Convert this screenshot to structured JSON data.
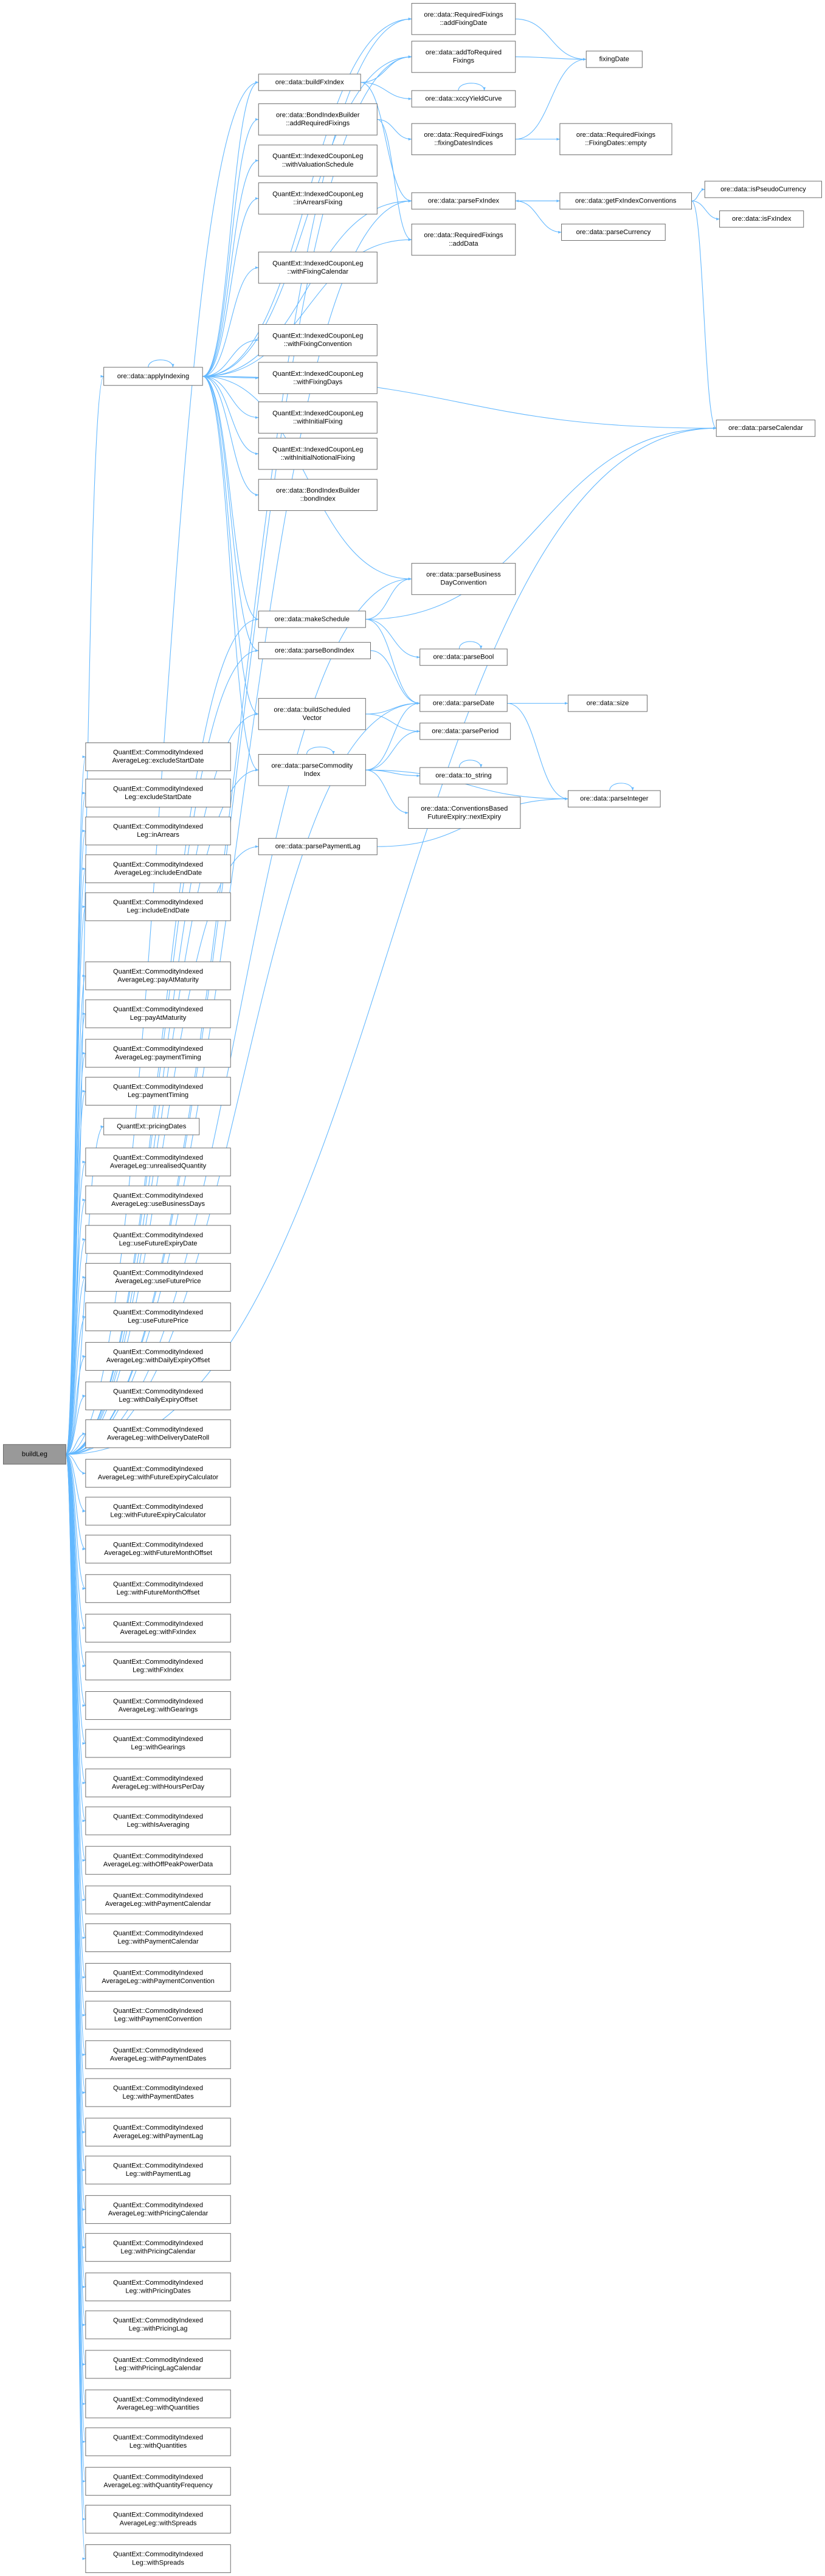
{
  "nodes": [
    {
      "lines": [
        "buildLeg"
      ]
    },
    {
      "lines": [
        "ore::data::applyIndexing"
      ]
    },
    {
      "lines": [
        "ore::data::buildFxIndex"
      ]
    },
    {
      "lines": [
        "ore::data::BondIndexBuilder",
        "::addRequiredFixings"
      ]
    },
    {
      "lines": [
        "QuantExt::IndexedCouponLeg",
        "::withValuationSchedule"
      ]
    },
    {
      "lines": [
        "QuantExt::IndexedCouponLeg",
        "::inArrearsFixing"
      ]
    },
    {
      "lines": [
        "QuantExt::IndexedCouponLeg",
        "::withFixingCalendar"
      ]
    },
    {
      "lines": [
        "QuantExt::IndexedCouponLeg",
        "::withFixingConvention"
      ]
    },
    {
      "lines": [
        "QuantExt::IndexedCouponLeg",
        "::withFixingDays"
      ]
    },
    {
      "lines": [
        "QuantExt::IndexedCouponLeg",
        "::withInitialFixing"
      ]
    },
    {
      "lines": [
        "QuantExt::IndexedCouponLeg",
        "::withInitialNotionalFixing"
      ]
    },
    {
      "lines": [
        "ore::data::BondIndexBuilder",
        "::bondIndex"
      ]
    },
    {
      "lines": [
        "ore::data::makeSchedule"
      ]
    },
    {
      "lines": [
        "ore::data::parseBondIndex"
      ]
    },
    {
      "lines": [
        "ore::data::buildScheduled",
        "Vector"
      ]
    },
    {
      "lines": [
        "ore::data::parseCommodity",
        "Index"
      ]
    },
    {
      "lines": [
        "ore::data::parsePaymentLag"
      ]
    },
    {
      "lines": [
        "ore::data::RequiredFixings",
        "::addFixingDate"
      ]
    },
    {
      "lines": [
        "ore::data::addToRequired",
        "Fixings"
      ]
    },
    {
      "lines": [
        "ore::data::xccyYieldCurve"
      ]
    },
    {
      "lines": [
        "ore::data::RequiredFixings",
        "::fixingDatesIndices"
      ]
    },
    {
      "lines": [
        "ore::data::parseFxIndex"
      ]
    },
    {
      "lines": [
        "ore::data::RequiredFixings",
        "::addData"
      ]
    },
    {
      "lines": [
        "ore::data::parseBusiness",
        "DayConvention"
      ]
    },
    {
      "lines": [
        "ore::data::parseBool"
      ]
    },
    {
      "lines": [
        "ore::data::parseDate"
      ]
    },
    {
      "lines": [
        "ore::data::parsePeriod"
      ]
    },
    {
      "lines": [
        "ore::data::to_string"
      ]
    },
    {
      "lines": [
        "ore::data::ConventionsBased",
        "FutureExpiry::nextExpiry"
      ]
    },
    {
      "lines": [
        "fixingDate"
      ]
    },
    {
      "lines": [
        "ore::data::RequiredFixings",
        "::FixingDates::empty"
      ]
    },
    {
      "lines": [
        "ore::data::getFxIndexConventions"
      ]
    },
    {
      "lines": [
        "ore::data::parseCurrency"
      ]
    },
    {
      "lines": [
        "ore::data::size"
      ]
    },
    {
      "lines": [
        "ore::data::parseInteger"
      ]
    },
    {
      "lines": [
        "ore::data::isPseudoCurrency"
      ]
    },
    {
      "lines": [
        "ore::data::isFxIndex"
      ]
    },
    {
      "lines": [
        "ore::data::parseCalendar"
      ]
    },
    {
      "lines": [
        "QuantExt::CommodityIndexed",
        "AverageLeg::excludeStartDate"
      ]
    },
    {
      "lines": [
        "QuantExt::CommodityIndexed",
        "Leg::excludeStartDate"
      ]
    },
    {
      "lines": [
        "QuantExt::CommodityIndexed",
        "Leg::inArrears"
      ]
    },
    {
      "lines": [
        "QuantExt::CommodityIndexed",
        "AverageLeg::includeEndDate"
      ]
    },
    {
      "lines": [
        "QuantExt::CommodityIndexed",
        "Leg::includeEndDate"
      ]
    },
    {
      "lines": [
        "QuantExt::CommodityIndexed",
        "AverageLeg::payAtMaturity"
      ]
    },
    {
      "lines": [
        "QuantExt::CommodityIndexed",
        "Leg::payAtMaturity"
      ]
    },
    {
      "lines": [
        "QuantExt::CommodityIndexed",
        "AverageLeg::paymentTiming"
      ]
    },
    {
      "lines": [
        "QuantExt::CommodityIndexed",
        "Leg::paymentTiming"
      ]
    },
    {
      "lines": [
        "QuantExt::pricingDates"
      ]
    },
    {
      "lines": [
        "QuantExt::CommodityIndexed",
        "AverageLeg::unrealisedQuantity"
      ]
    },
    {
      "lines": [
        "QuantExt::CommodityIndexed",
        "AverageLeg::useBusinessDays"
      ]
    },
    {
      "lines": [
        "QuantExt::CommodityIndexed",
        "Leg::useFutureExpiryDate"
      ]
    },
    {
      "lines": [
        "QuantExt::CommodityIndexed",
        "AverageLeg::useFuturePrice"
      ]
    },
    {
      "lines": [
        "QuantExt::CommodityIndexed",
        "Leg::useFuturePrice"
      ]
    },
    {
      "lines": [
        "QuantExt::CommodityIndexed",
        "AverageLeg::withDailyExpiryOffset"
      ]
    },
    {
      "lines": [
        "QuantExt::CommodityIndexed",
        "Leg::withDailyExpiryOffset"
      ]
    },
    {
      "lines": [
        "QuantExt::CommodityIndexed",
        "AverageLeg::withDeliveryDateRoll"
      ]
    },
    {
      "lines": [
        "QuantExt::CommodityIndexed",
        "AverageLeg::withFutureExpiryCalculator"
      ]
    },
    {
      "lines": [
        "QuantExt::CommodityIndexed",
        "Leg::withFutureExpiryCalculator"
      ]
    },
    {
      "lines": [
        "QuantExt::CommodityIndexed",
        "AverageLeg::withFutureMonthOffset"
      ]
    },
    {
      "lines": [
        "QuantExt::CommodityIndexed",
        "Leg::withFutureMonthOffset"
      ]
    },
    {
      "lines": [
        "QuantExt::CommodityIndexed",
        "AverageLeg::withFxIndex"
      ]
    },
    {
      "lines": [
        "QuantExt::CommodityIndexed",
        "Leg::withFxIndex"
      ]
    },
    {
      "lines": [
        "QuantExt::CommodityIndexed",
        "AverageLeg::withGearings"
      ]
    },
    {
      "lines": [
        "QuantExt::CommodityIndexed",
        "Leg::withGearings"
      ]
    },
    {
      "lines": [
        "QuantExt::CommodityIndexed",
        "AverageLeg::withHoursPerDay"
      ]
    },
    {
      "lines": [
        "QuantExt::CommodityIndexed",
        "Leg::withIsAveraging"
      ]
    },
    {
      "lines": [
        "QuantExt::CommodityIndexed",
        "AverageLeg::withOffPeakPowerData"
      ]
    },
    {
      "lines": [
        "QuantExt::CommodityIndexed",
        "AverageLeg::withPaymentCalendar"
      ]
    },
    {
      "lines": [
        "QuantExt::CommodityIndexed",
        "Leg::withPaymentCalendar"
      ]
    },
    {
      "lines": [
        "QuantExt::CommodityIndexed",
        "AverageLeg::withPaymentConvention"
      ]
    },
    {
      "lines": [
        "QuantExt::CommodityIndexed",
        "Leg::withPaymentConvention"
      ]
    },
    {
      "lines": [
        "QuantExt::CommodityIndexed",
        "AverageLeg::withPaymentDates"
      ]
    },
    {
      "lines": [
        "QuantExt::CommodityIndexed",
        "Leg::withPaymentDates"
      ]
    },
    {
      "lines": [
        "QuantExt::CommodityIndexed",
        "AverageLeg::withPaymentLag"
      ]
    },
    {
      "lines": [
        "QuantExt::CommodityIndexed",
        "Leg::withPaymentLag"
      ]
    },
    {
      "lines": [
        "QuantExt::CommodityIndexed",
        "AverageLeg::withPricingCalendar"
      ]
    },
    {
      "lines": [
        "QuantExt::CommodityIndexed",
        "Leg::withPricingCalendar"
      ]
    },
    {
      "lines": [
        "QuantExt::CommodityIndexed",
        "Leg::withPricingDates"
      ]
    },
    {
      "lines": [
        "QuantExt::CommodityIndexed",
        "Leg::withPricingLag"
      ]
    },
    {
      "lines": [
        "QuantExt::CommodityIndexed",
        "Leg::withPricingLagCalendar"
      ]
    },
    {
      "lines": [
        "QuantExt::CommodityIndexed",
        "AverageLeg::withQuantities"
      ]
    },
    {
      "lines": [
        "QuantExt::CommodityIndexed",
        "Leg::withQuantities"
      ]
    },
    {
      "lines": [
        "QuantExt::CommodityIndexed",
        "AverageLeg::withQuantityFrequency"
      ]
    },
    {
      "lines": [
        "QuantExt::CommodityIndexed",
        "AverageLeg::withSpreads"
      ]
    },
    {
      "lines": [
        "QuantExt::CommodityIndexed",
        "Leg::withSpreads"
      ]
    }
  ]
}
